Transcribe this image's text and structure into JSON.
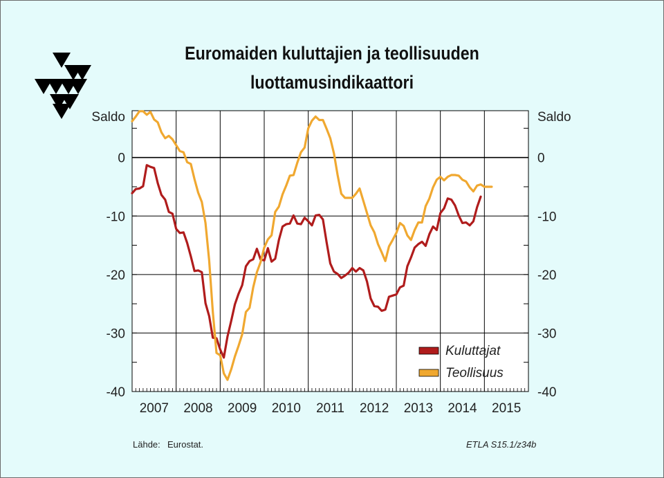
{
  "title_line1": "Euromaiden kuluttajien ja teollisuuden",
  "title_line2": "luottamusindikaattori",
  "source_label": "Lähde:",
  "source_value": "Eurostat.",
  "code": "ETLA S15.1/z34b",
  "logo": "etla-triangles-logo",
  "chart_data": {
    "type": "line",
    "title": "Euromaiden kuluttajien ja teollisuuden luottamusindikaattori",
    "ylabel_left": "Saldo",
    "ylabel_right": "Saldo",
    "xlabel": "",
    "x_ticks": [
      "2007",
      "2008",
      "2009",
      "2010",
      "2011",
      "2012",
      "2013",
      "2014",
      "2015"
    ],
    "y_ticks": [
      0,
      -10,
      -20,
      -30,
      -40
    ],
    "ylim": [
      -40,
      8
    ],
    "xlim": [
      2007,
      2016
    ],
    "grid": true,
    "legend": "bottom-right",
    "colors": {
      "Kuluttajat": "#b01c1c",
      "Teollisuus": "#f0a830",
      "grid": "#000000",
      "background": "#ffffff"
    },
    "series": [
      {
        "name": "Kuluttajat",
        "values": [
          -6.1,
          -5.4,
          -5.3,
          -4.9,
          -1.3,
          -1.6,
          -1.8,
          -4.4,
          -6.4,
          -7.2,
          -9.3,
          -9.6,
          -12.2,
          -12.9,
          -12.8,
          -14.6,
          -16.9,
          -19.4,
          -19.3,
          -19.6,
          -24.9,
          -27.1,
          -30.8,
          -30.9,
          -32.8,
          -34.2,
          -30.6,
          -27.9,
          -25.1,
          -23.3,
          -21.8,
          -18.6,
          -17.7,
          -17.4,
          -15.6,
          -17.4,
          -17.6,
          -15.5,
          -17.8,
          -17.3,
          -14.1,
          -11.8,
          -11.4,
          -11.3,
          -9.9,
          -11.3,
          -11.4,
          -10.3,
          -10.9,
          -11.6,
          -9.9,
          -9.8,
          -10.6,
          -14.5,
          -18.1,
          -19.5,
          -19.9,
          -20.6,
          -20.2,
          -19.7,
          -18.9,
          -19.5,
          -18.9,
          -19.3,
          -21.2,
          -24.1,
          -25.4,
          -25.5,
          -26.2,
          -26.0,
          -23.8,
          -23.6,
          -23.4,
          -22.2,
          -21.9,
          -18.6,
          -17.1,
          -15.4,
          -14.8,
          -14.4,
          -15.1,
          -13.1,
          -11.8,
          -12.4,
          -9.5,
          -8.7,
          -7.0,
          -7.2,
          -8.2,
          -9.9,
          -11.2,
          -11.1,
          -11.6,
          -10.9,
          -8.5,
          -6.7
        ],
        "x_start": "2007-01",
        "x_end": "2014-12"
      },
      {
        "name": "Teollisuus",
        "values": [
          6.2,
          7.0,
          7.9,
          7.9,
          7.3,
          7.8,
          6.5,
          6.0,
          4.3,
          3.3,
          3.7,
          3.1,
          2.1,
          1.1,
          0.9,
          -0.8,
          -1.1,
          -3.7,
          -6.0,
          -7.6,
          -11.2,
          -17.6,
          -26.4,
          -33.4,
          -33.8,
          -36.9,
          -38.0,
          -36.2,
          -34.0,
          -32.2,
          -30.2,
          -26.4,
          -25.7,
          -22.2,
          -19.6,
          -17.9,
          -15.4,
          -14.0,
          -13.3,
          -9.3,
          -8.4,
          -6.3,
          -4.8,
          -3.1,
          -3.0,
          -0.9,
          0.9,
          1.7,
          5.0,
          6.3,
          7.0,
          6.4,
          6.4,
          4.9,
          3.3,
          0.7,
          -3.0,
          -6.2,
          -6.9,
          -6.9,
          -6.9,
          -6.2,
          -5.3,
          -7.4,
          -9.5,
          -11.6,
          -12.8,
          -14.8,
          -16.2,
          -17.7,
          -15.2,
          -14.1,
          -12.9,
          -11.2,
          -11.7,
          -13.3,
          -14.1,
          -12.4,
          -11.1,
          -11.1,
          -8.3,
          -7.0,
          -5.1,
          -3.8,
          -3.3,
          -3.9,
          -3.3,
          -3.0,
          -3.0,
          -3.1,
          -3.8,
          -4.1,
          -5.1,
          -5.8,
          -4.8,
          -4.6,
          -5.0,
          -5.0,
          -5.0
        ],
        "x_start": "2007-01",
        "x_end": "2015-03"
      }
    ]
  }
}
